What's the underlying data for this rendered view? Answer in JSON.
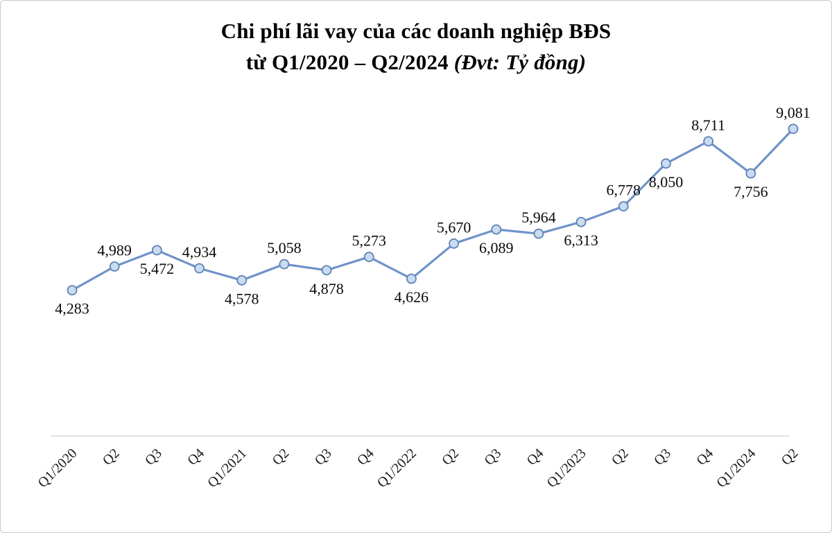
{
  "title": {
    "line1": "Chi phí lãi vay của các doanh nghiệp BĐS",
    "line2_main": "từ Q1/2020 – Q2/2024 ",
    "line2_unit": "(Đvt: Tỷ đồng)"
  },
  "chart_data": {
    "type": "line",
    "title": "Chi phí lãi vay của các doanh nghiệp BĐS từ Q1/2020 – Q2/2024",
    "unit": "Tỷ đồng",
    "categories": [
      "Q1/2020",
      "Q2",
      "Q3",
      "Q4",
      "Q1/2021",
      "Q2",
      "Q3",
      "Q4",
      "Q1/2022",
      "Q2",
      "Q3",
      "Q4",
      "Q1/2023",
      "Q2",
      "Q3",
      "Q4",
      "Q1/2024",
      "Q2"
    ],
    "values": [
      4283,
      4989,
      5472,
      4934,
      4578,
      5058,
      4878,
      5273,
      4626,
      5670,
      6089,
      5964,
      6313,
      6778,
      8050,
      8711,
      7756,
      9081
    ],
    "labels": [
      "4,283",
      "4,989",
      "5,472",
      "4,934",
      "4,578",
      "5,058",
      "4,878",
      "5,273",
      "4,626",
      "5,670",
      "6,089",
      "5,964",
      "6,313",
      "6,778",
      "8,050",
      "8,711",
      "7,756",
      "9,081"
    ],
    "ylim": [
      3000,
      9800
    ],
    "grid": false,
    "legend": "none",
    "label_placement": "alternating, starting below first point",
    "x_tick_rotation": -45,
    "colors": {
      "line": "#6F93C8",
      "marker_fill": "#C9DCF0",
      "marker_stroke": "#5E82B5",
      "axis": "#D9D9D9",
      "text": "#000000"
    }
  }
}
